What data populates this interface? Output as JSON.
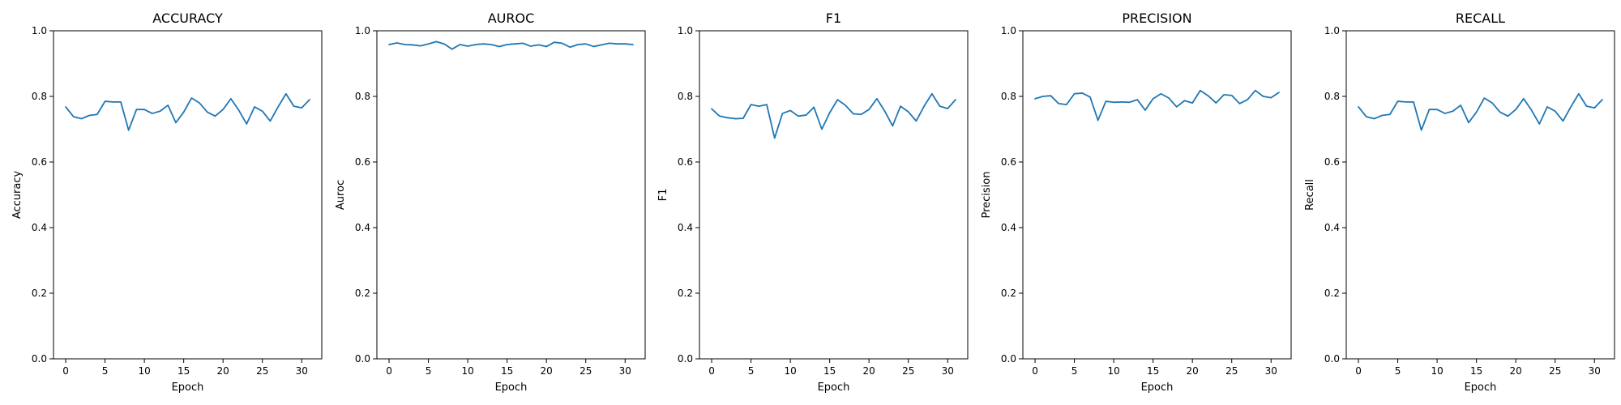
{
  "chart_data": [
    {
      "type": "line",
      "title": "ACCURACY",
      "xlabel": "Epoch",
      "ylabel": "Accuracy",
      "xlim": [
        -1.55,
        32.55
      ],
      "ylim": [
        0.0,
        1.0
      ],
      "xticks": [
        0,
        5,
        10,
        15,
        20,
        25,
        30
      ],
      "yticks": [
        0.0,
        0.2,
        0.4,
        0.6,
        0.8,
        1.0
      ],
      "grid": false,
      "legend": "none",
      "series": [
        {
          "color": "#1f77b4",
          "x": [
            0,
            1,
            2,
            3,
            4,
            5,
            6,
            7,
            8,
            9,
            10,
            11,
            12,
            13,
            14,
            15,
            16,
            17,
            18,
            19,
            20,
            21,
            22,
            23,
            24,
            25,
            26,
            27,
            28,
            29,
            30,
            31
          ],
          "y": [
            0.768,
            0.738,
            0.732,
            0.742,
            0.745,
            0.785,
            0.783,
            0.783,
            0.697,
            0.76,
            0.76,
            0.748,
            0.755,
            0.773,
            0.72,
            0.752,
            0.795,
            0.78,
            0.752,
            0.74,
            0.76,
            0.793,
            0.758,
            0.716,
            0.768,
            0.755,
            0.725,
            0.768,
            0.808,
            0.77,
            0.765,
            0.79
          ]
        }
      ]
    },
    {
      "type": "line",
      "title": "AUROC",
      "xlabel": "Epoch",
      "ylabel": "Auroc",
      "xlim": [
        -1.55,
        32.55
      ],
      "ylim": [
        0.0,
        1.0
      ],
      "xticks": [
        0,
        5,
        10,
        15,
        20,
        25,
        30
      ],
      "yticks": [
        0.0,
        0.2,
        0.4,
        0.6,
        0.8,
        1.0
      ],
      "grid": false,
      "legend": "none",
      "series": [
        {
          "color": "#1f77b4",
          "x": [
            0,
            1,
            2,
            3,
            4,
            5,
            6,
            7,
            8,
            9,
            10,
            11,
            12,
            13,
            14,
            15,
            16,
            17,
            18,
            19,
            20,
            21,
            22,
            23,
            24,
            25,
            26,
            27,
            28,
            29,
            30,
            31
          ],
          "y": [
            0.958,
            0.963,
            0.958,
            0.957,
            0.954,
            0.96,
            0.967,
            0.96,
            0.944,
            0.958,
            0.953,
            0.958,
            0.96,
            0.958,
            0.952,
            0.958,
            0.96,
            0.962,
            0.953,
            0.957,
            0.952,
            0.965,
            0.962,
            0.95,
            0.958,
            0.96,
            0.952,
            0.957,
            0.962,
            0.96,
            0.96,
            0.958
          ]
        }
      ]
    },
    {
      "type": "line",
      "title": "F1",
      "xlabel": "Epoch",
      "ylabel": "F1",
      "xlim": [
        -1.55,
        32.55
      ],
      "ylim": [
        0.0,
        1.0
      ],
      "xticks": [
        0,
        5,
        10,
        15,
        20,
        25,
        30
      ],
      "yticks": [
        0.0,
        0.2,
        0.4,
        0.6,
        0.8,
        1.0
      ],
      "grid": false,
      "legend": "none",
      "series": [
        {
          "color": "#1f77b4",
          "x": [
            0,
            1,
            2,
            3,
            4,
            5,
            6,
            7,
            8,
            9,
            10,
            11,
            12,
            13,
            14,
            15,
            16,
            17,
            18,
            19,
            20,
            21,
            22,
            23,
            24,
            25,
            26,
            27,
            28,
            29,
            30,
            31
          ],
          "y": [
            0.762,
            0.74,
            0.735,
            0.732,
            0.733,
            0.775,
            0.77,
            0.775,
            0.673,
            0.748,
            0.757,
            0.74,
            0.743,
            0.767,
            0.7,
            0.75,
            0.79,
            0.773,
            0.747,
            0.745,
            0.76,
            0.793,
            0.755,
            0.71,
            0.77,
            0.753,
            0.725,
            0.77,
            0.808,
            0.77,
            0.763,
            0.79
          ]
        }
      ]
    },
    {
      "type": "line",
      "title": "PRECISION",
      "xlabel": "Epoch",
      "ylabel": "Precision",
      "xlim": [
        -1.55,
        32.55
      ],
      "ylim": [
        0.0,
        1.0
      ],
      "xticks": [
        0,
        5,
        10,
        15,
        20,
        25,
        30
      ],
      "yticks": [
        0.0,
        0.2,
        0.4,
        0.6,
        0.8,
        1.0
      ],
      "grid": false,
      "legend": "none",
      "series": [
        {
          "color": "#1f77b4",
          "x": [
            0,
            1,
            2,
            3,
            4,
            5,
            6,
            7,
            8,
            9,
            10,
            11,
            12,
            13,
            14,
            15,
            16,
            17,
            18,
            19,
            20,
            21,
            22,
            23,
            24,
            25,
            26,
            27,
            28,
            29,
            30,
            31
          ],
          "y": [
            0.793,
            0.8,
            0.802,
            0.778,
            0.775,
            0.808,
            0.81,
            0.798,
            0.727,
            0.785,
            0.782,
            0.783,
            0.782,
            0.79,
            0.758,
            0.793,
            0.808,
            0.795,
            0.768,
            0.787,
            0.78,
            0.818,
            0.802,
            0.78,
            0.805,
            0.803,
            0.778,
            0.79,
            0.818,
            0.8,
            0.796,
            0.812
          ]
        }
      ]
    },
    {
      "type": "line",
      "title": "RECALL",
      "xlabel": "Epoch",
      "ylabel": "Recall",
      "xlim": [
        -1.55,
        32.55
      ],
      "ylim": [
        0.0,
        1.0
      ],
      "xticks": [
        0,
        5,
        10,
        15,
        20,
        25,
        30
      ],
      "yticks": [
        0.0,
        0.2,
        0.4,
        0.6,
        0.8,
        1.0
      ],
      "grid": false,
      "legend": "none",
      "series": [
        {
          "color": "#1f77b4",
          "x": [
            0,
            1,
            2,
            3,
            4,
            5,
            6,
            7,
            8,
            9,
            10,
            11,
            12,
            13,
            14,
            15,
            16,
            17,
            18,
            19,
            20,
            21,
            22,
            23,
            24,
            25,
            26,
            27,
            28,
            29,
            30,
            31
          ],
          "y": [
            0.768,
            0.738,
            0.732,
            0.742,
            0.745,
            0.785,
            0.783,
            0.783,
            0.697,
            0.76,
            0.76,
            0.748,
            0.755,
            0.773,
            0.72,
            0.752,
            0.795,
            0.78,
            0.752,
            0.74,
            0.76,
            0.793,
            0.758,
            0.716,
            0.768,
            0.755,
            0.725,
            0.768,
            0.808,
            0.77,
            0.765,
            0.79
          ]
        }
      ]
    }
  ]
}
